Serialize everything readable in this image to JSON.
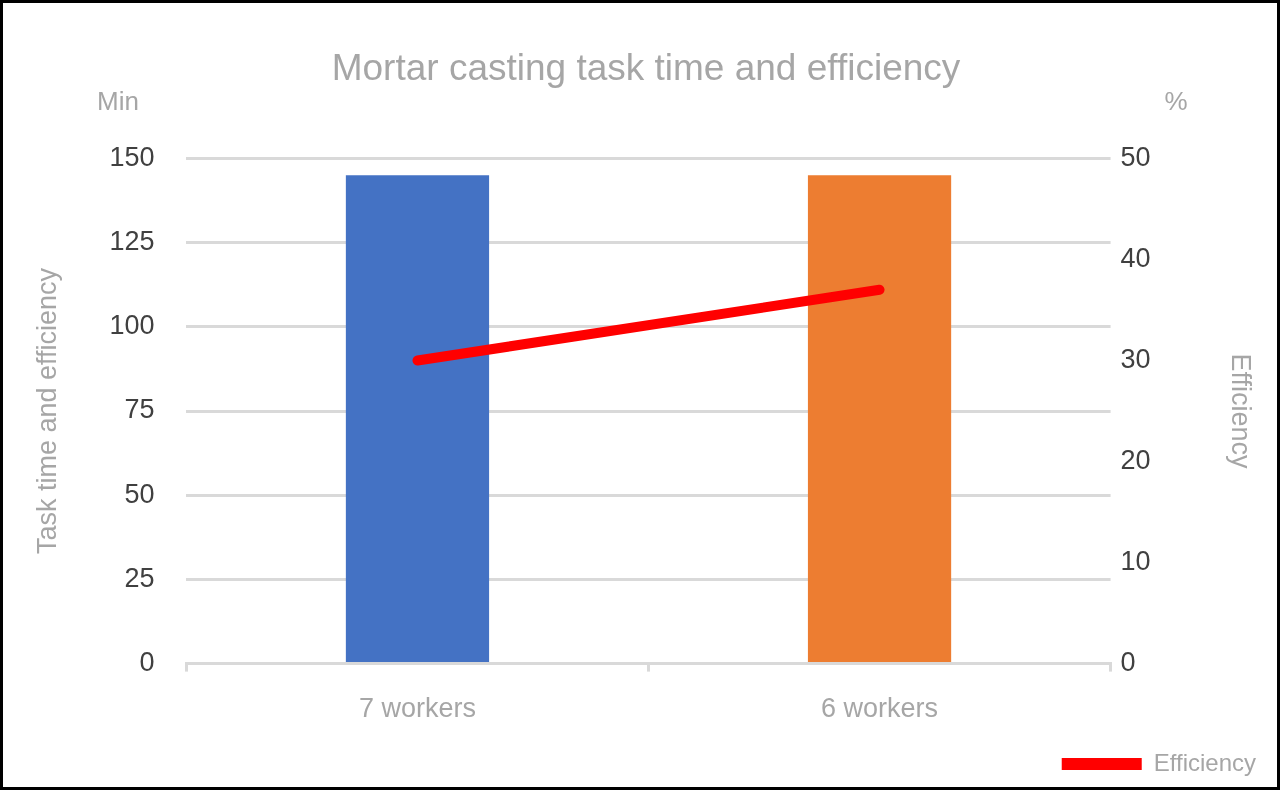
{
  "chart_data": {
    "type": "bar",
    "title": "Mortar casting task time and efficiency",
    "ylabel": "Task time and efficiency",
    "y2label": "Efficiency",
    "annotations": [
      "Min",
      "%"
    ],
    "categories": [
      "7 workers",
      "6 workers"
    ],
    "series": [
      {
        "colors": [
          "#4472c4",
          "#ed7d31"
        ],
        "values": [
          145,
          145
        ]
      },
      {
        "type": "line",
        "name": "Efficiency",
        "color": "#ff0000",
        "axis": "y2",
        "values": [
          30,
          37
        ]
      }
    ],
    "ylim": [
      0,
      150
    ],
    "yticks": [
      0,
      25,
      50,
      75,
      100,
      125,
      150
    ],
    "y2lim": [
      0,
      50
    ],
    "y2ticks": [
      0,
      10,
      20,
      30,
      40,
      50
    ],
    "grid": "y",
    "legend": "bottom right",
    "marker": "none",
    "line_style": "solid"
  }
}
